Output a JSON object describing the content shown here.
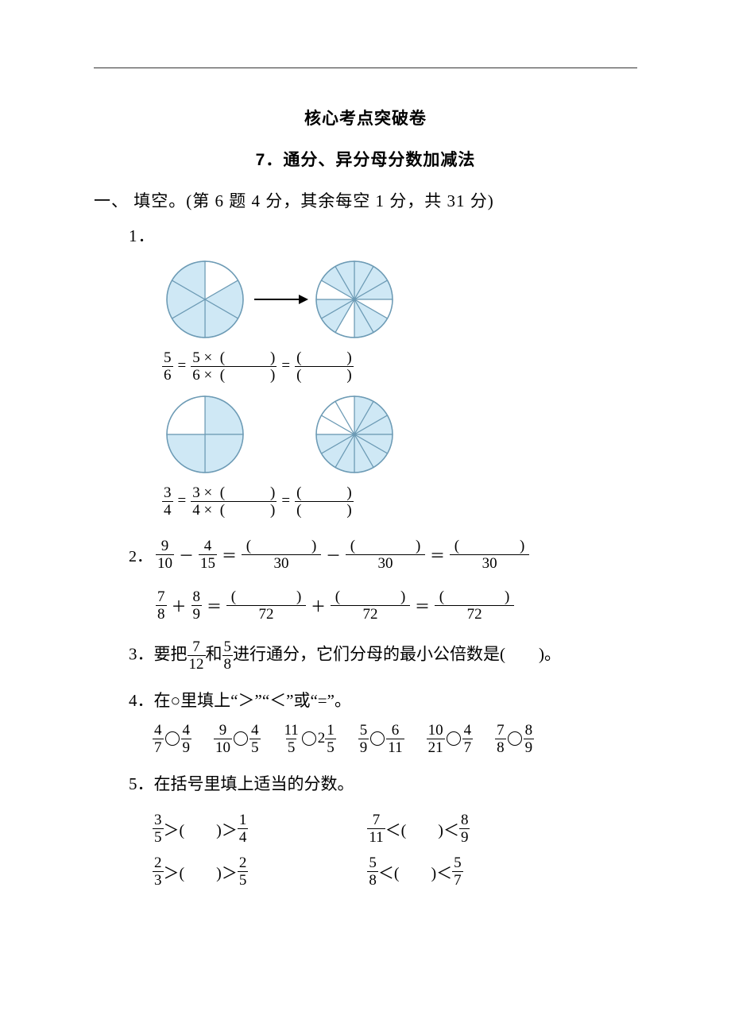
{
  "colors": {
    "text": "#000000",
    "bg": "#ffffff",
    "pie_fill": "#cfe8f5",
    "pie_stroke": "#6d9bb5",
    "arrow": "#000000"
  },
  "title1": "核心考点突破卷",
  "title2": "7．通分、异分母分数加减法",
  "section1": "一、 填空。(第 6 题 4 分，其余每空 1 分，共 31 分)",
  "q1": {
    "num": "1．",
    "eq1": {
      "a_num": "5",
      "a_den": "6",
      "b_num_pre": "5 ×",
      "b_den_pre": "6 ×"
    },
    "eq2": {
      "a_num": "3",
      "a_den": "4",
      "b_num_pre": "3 ×",
      "b_den_pre": "4 ×"
    },
    "pie_A": {
      "slices": 6,
      "filled": [
        1,
        2,
        3,
        4,
        5
      ]
    },
    "pie_B": {
      "slices": 12,
      "filled": [
        0,
        1,
        2,
        4,
        5,
        7,
        8,
        10,
        11
      ]
    },
    "pie_C": {
      "slices": 4,
      "filled": [
        0,
        1,
        2
      ]
    },
    "pie_D": {
      "slices": 12,
      "filled": [
        0,
        1,
        2,
        3,
        4,
        5,
        6,
        7,
        8
      ]
    }
  },
  "q2": {
    "num": "2．",
    "line1": {
      "f1": {
        "n": "9",
        "d": "10"
      },
      "op1": "－",
      "f2": {
        "n": "4",
        "d": "15"
      },
      "den": "30",
      "op2": "－",
      "op3": "＝"
    },
    "line2": {
      "f1": {
        "n": "7",
        "d": "8"
      },
      "op1": "＋",
      "f2": {
        "n": "8",
        "d": "9"
      },
      "den": "72",
      "op2": "＋",
      "op3": "＝"
    }
  },
  "q3": {
    "num": "3．",
    "pre": "要把",
    "f1": {
      "n": "7",
      "d": "12"
    },
    "mid": "和",
    "f2": {
      "n": "5",
      "d": "8"
    },
    "post": "进行通分，它们分母的最小公倍数是(　　)。"
  },
  "q4": {
    "num": "4．",
    "text": "在○里填上“＞”“＜”或“=”。",
    "items": [
      {
        "a": {
          "n": "4",
          "d": "7"
        },
        "b": {
          "n": "4",
          "d": "9"
        }
      },
      {
        "a": {
          "n": "9",
          "d": "10"
        },
        "b": {
          "n": "4",
          "d": "5"
        }
      },
      {
        "a": {
          "n": "11",
          "d": "5"
        },
        "b": {
          "whole": "2",
          "n": "1",
          "d": "5"
        }
      },
      {
        "a": {
          "n": "5",
          "d": "9"
        },
        "b": {
          "n": "6",
          "d": "11"
        }
      },
      {
        "a": {
          "n": "10",
          "d": "21"
        },
        "b": {
          "n": "4",
          "d": "7"
        }
      },
      {
        "a": {
          "n": "7",
          "d": "8"
        },
        "b": {
          "n": "8",
          "d": "9"
        }
      }
    ]
  },
  "q5": {
    "num": "5．",
    "text": "在括号里填上适当的分数。",
    "rows": [
      [
        {
          "a": {
            "n": "3",
            "d": "5"
          },
          "op1": "＞",
          "op2": "＞",
          "b": {
            "n": "1",
            "d": "4"
          }
        },
        {
          "a": {
            "n": "7",
            "d": "11"
          },
          "op1": "＜",
          "op2": "＜",
          "b": {
            "n": "8",
            "d": "9"
          }
        }
      ],
      [
        {
          "a": {
            "n": "2",
            "d": "3"
          },
          "op1": "＞",
          "op2": "＞",
          "b": {
            "n": "2",
            "d": "5"
          }
        },
        {
          "a": {
            "n": "5",
            "d": "8"
          },
          "op1": "＜",
          "op2": "＜",
          "b": {
            "n": "5",
            "d": "7"
          }
        }
      ]
    ]
  }
}
